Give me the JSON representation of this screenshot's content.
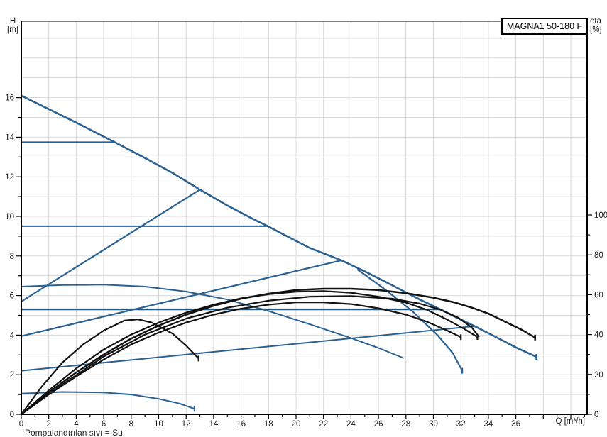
{
  "title": "MAGNA1 50-180 F",
  "axis_labels": {
    "left": [
      "H",
      "[m]"
    ],
    "right": [
      "eta",
      "[%]"
    ],
    "x": "Q [m³/h]"
  },
  "footer": "Pompalandırılan sıvı = Su",
  "ticks": {
    "h_major_labels": [
      0,
      2,
      4,
      6,
      8,
      10,
      12,
      14,
      16
    ],
    "eta_major_labels": [
      0,
      20,
      40,
      60,
      80,
      100
    ],
    "q_major_labels": [
      0,
      2,
      4,
      6,
      8,
      10,
      12,
      14,
      16,
      18,
      20,
      22,
      24,
      26,
      28,
      30,
      32,
      34,
      36
    ]
  },
  "colors": {
    "curve_blue": "#2a6191",
    "curve_blue_dark": "#1d5480",
    "curve_black": "#121212",
    "grid": "#d9d9d9",
    "axis": "#000000",
    "background": "#ffffff"
  },
  "chart_data": {
    "type": "line",
    "title": "MAGNA1 50-180 F",
    "xlabel": "Q [m³/h]",
    "ylabel_left": "H [m]",
    "ylabel_right": "eta [%]",
    "x_range": [
      0,
      41.2
    ],
    "h_range": [
      0,
      19.9
    ],
    "eta_range": [
      0,
      100
    ],
    "grid": {
      "x_step": 2,
      "h_step": 1,
      "grid_on": true
    },
    "legend": "none",
    "series": [
      {
        "name": "qh-max-speed-curve",
        "axis": "H",
        "color": "blue",
        "width": 2.6,
        "end_tick": true,
        "points": [
          [
            0,
            16.1
          ],
          [
            2,
            15.42
          ],
          [
            4,
            14.74
          ],
          [
            6,
            14.03
          ],
          [
            6.8,
            13.75
          ],
          [
            9,
            12.95
          ],
          [
            11,
            12.2
          ],
          [
            13,
            11.35
          ],
          [
            15,
            10.55
          ],
          [
            17,
            9.82
          ],
          [
            17.95,
            9.5
          ],
          [
            19,
            9.12
          ],
          [
            21,
            8.4
          ],
          [
            23.3,
            7.78
          ],
          [
            25,
            7.22
          ],
          [
            27,
            6.52
          ],
          [
            29,
            5.8
          ],
          [
            30.5,
            5.3
          ],
          [
            32,
            4.78
          ],
          [
            33,
            4.45
          ],
          [
            34.5,
            3.92
          ],
          [
            36,
            3.38
          ],
          [
            37.5,
            2.9
          ]
        ]
      },
      {
        "name": "constant-pressure-13.75m",
        "axis": "H",
        "color": "blue",
        "width": 2,
        "end_tick": false,
        "points": [
          [
            0,
            13.75
          ],
          [
            6.8,
            13.75
          ]
        ]
      },
      {
        "name": "constant-pressure-9.5m",
        "axis": "H",
        "color": "blue",
        "width": 2,
        "end_tick": false,
        "points": [
          [
            0,
            9.5
          ],
          [
            17.95,
            9.5
          ]
        ]
      },
      {
        "name": "constant-pressure-5.3m",
        "axis": "H",
        "color": "blue_dark",
        "width": 2.4,
        "end_tick": false,
        "points": [
          [
            0,
            5.3
          ],
          [
            30.5,
            5.3
          ]
        ]
      },
      {
        "name": "proportional-pressure-high",
        "axis": "H",
        "color": "blue",
        "width": 2.2,
        "end_tick": false,
        "points": [
          [
            0,
            5.7
          ],
          [
            13,
            11.35
          ]
        ]
      },
      {
        "name": "proportional-pressure-mid",
        "axis": "H",
        "color": "blue",
        "width": 2.2,
        "end_tick": false,
        "points": [
          [
            0,
            3.95
          ],
          [
            23.3,
            7.78
          ]
        ]
      },
      {
        "name": "proportional-pressure-low",
        "axis": "H",
        "color": "blue",
        "width": 2,
        "end_tick": false,
        "points": [
          [
            0,
            2.2
          ],
          [
            33,
            4.45
          ]
        ]
      },
      {
        "name": "qh-speed-iii-curve",
        "axis": "H",
        "color": "blue",
        "width": 2,
        "end_tick": false,
        "points": [
          [
            0,
            6.45
          ],
          [
            3,
            6.53
          ],
          [
            6,
            6.55
          ],
          [
            9,
            6.45
          ],
          [
            12,
            6.2
          ],
          [
            15,
            5.8
          ],
          [
            18,
            5.22
          ],
          [
            21,
            4.55
          ],
          [
            24,
            3.85
          ],
          [
            26,
            3.35
          ],
          [
            27.8,
            2.85
          ]
        ]
      },
      {
        "name": "qh-speed-ii-tail-curve",
        "axis": "H",
        "color": "blue",
        "width": 2.2,
        "end_tick": true,
        "points": [
          [
            24.5,
            7.3
          ],
          [
            26.4,
            6.35
          ],
          [
            28.4,
            5.25
          ],
          [
            30.3,
            4.0
          ],
          [
            31.4,
            3.1
          ],
          [
            32.1,
            2.2
          ]
        ]
      },
      {
        "name": "qh-min-speed-curve",
        "axis": "H",
        "color": "blue",
        "width": 2,
        "end_tick": true,
        "points": [
          [
            0,
            1.05
          ],
          [
            3,
            1.13
          ],
          [
            6,
            1.1
          ],
          [
            8,
            1.0
          ],
          [
            10,
            0.78
          ],
          [
            11.5,
            0.55
          ],
          [
            12.6,
            0.28
          ]
        ]
      },
      {
        "name": "eta-max-speed-curve",
        "axis": "eta",
        "color": "black",
        "width": 2.5,
        "end_tick": true,
        "points": [
          [
            0,
            0
          ],
          [
            2,
            11
          ],
          [
            4,
            21
          ],
          [
            6,
            30
          ],
          [
            8,
            38
          ],
          [
            10,
            44.5
          ],
          [
            12,
            50
          ],
          [
            14,
            54.5
          ],
          [
            16,
            58
          ],
          [
            18,
            60.5
          ],
          [
            20,
            62.3
          ],
          [
            22,
            63
          ],
          [
            24,
            63
          ],
          [
            26,
            62.3
          ],
          [
            28,
            60.8
          ],
          [
            30,
            58.5
          ],
          [
            31.5,
            56.2
          ],
          [
            32.8,
            53.5
          ],
          [
            34,
            50.5
          ],
          [
            35.2,
            46.5
          ],
          [
            36.4,
            42.5
          ],
          [
            37.4,
            38.5
          ]
        ]
      },
      {
        "name": "eta-curve-b",
        "axis": "eta",
        "color": "black",
        "width": 2.2,
        "end_tick": true,
        "points": [
          [
            0,
            0
          ],
          [
            2,
            12
          ],
          [
            4,
            23
          ],
          [
            6,
            32.5
          ],
          [
            8,
            40
          ],
          [
            10,
            46
          ],
          [
            12,
            51
          ],
          [
            14,
            55
          ],
          [
            16,
            58.2
          ],
          [
            18,
            60.2
          ],
          [
            20,
            61.5
          ],
          [
            22,
            61.8
          ],
          [
            24,
            61
          ],
          [
            26,
            59
          ],
          [
            28,
            56
          ],
          [
            29.5,
            52.5
          ],
          [
            31,
            47.5
          ],
          [
            32.2,
            43
          ],
          [
            33.2,
            38.8
          ]
        ]
      },
      {
        "name": "eta-curve-e",
        "axis": "eta",
        "color": "black",
        "width": 2.2,
        "end_tick": false,
        "points": [
          [
            0,
            0
          ],
          [
            3,
            15
          ],
          [
            6,
            29
          ],
          [
            9,
            40
          ],
          [
            12,
            48
          ],
          [
            15,
            53.5
          ],
          [
            18,
            57
          ],
          [
            21,
            59
          ],
          [
            24,
            59.3
          ],
          [
            27,
            58
          ],
          [
            29,
            55.5
          ],
          [
            30.5,
            52.5
          ],
          [
            31.8,
            48.5
          ],
          [
            32.8,
            43.5
          ],
          [
            33.3,
            39
          ]
        ]
      },
      {
        "name": "eta-curve-c",
        "axis": "eta",
        "color": "black",
        "width": 2.2,
        "end_tick": true,
        "points": [
          [
            0,
            0
          ],
          [
            2,
            10
          ],
          [
            4,
            19
          ],
          [
            6,
            27.5
          ],
          [
            8,
            35
          ],
          [
            10,
            41
          ],
          [
            12,
            46
          ],
          [
            14,
            50
          ],
          [
            16,
            53
          ],
          [
            18,
            55
          ],
          [
            20,
            56.2
          ],
          [
            22,
            56.2
          ],
          [
            24,
            55.3
          ],
          [
            26,
            53.2
          ],
          [
            28,
            50
          ],
          [
            29.5,
            46.5
          ],
          [
            31,
            42
          ],
          [
            32,
            38.7
          ]
        ]
      },
      {
        "name": "eta-min-speed-curve",
        "axis": "eta",
        "color": "black",
        "width": 2.2,
        "end_tick": true,
        "points": [
          [
            0,
            0
          ],
          [
            1.5,
            14
          ],
          [
            3,
            26
          ],
          [
            4.5,
            35
          ],
          [
            6,
            42
          ],
          [
            7.5,
            47
          ],
          [
            8.5,
            47.6
          ],
          [
            9.5,
            46
          ],
          [
            11,
            40.5
          ],
          [
            12,
            34.5
          ],
          [
            12.9,
            28
          ]
        ]
      }
    ]
  }
}
